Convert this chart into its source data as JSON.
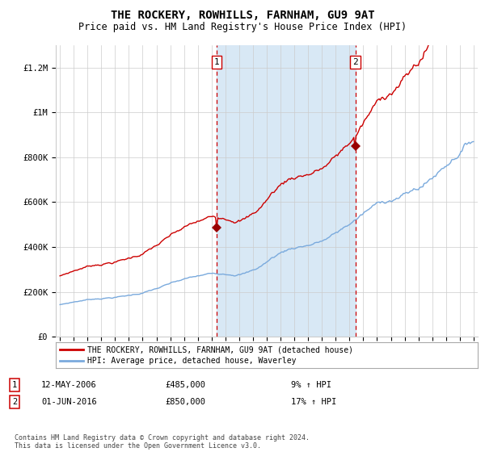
{
  "title": "THE ROCKERY, ROWHILLS, FARNHAM, GU9 9AT",
  "subtitle": "Price paid vs. HM Land Registry's House Price Index (HPI)",
  "title_fontsize": 10,
  "subtitle_fontsize": 8.5,
  "bg_color": "#ffffff",
  "plot_bg_color": "#ffffff",
  "shaded_region_color": "#d8e8f5",
  "grid_color": "#cccccc",
  "red_line_color": "#cc0000",
  "blue_line_color": "#7aaadd",
  "ylim": [
    0,
    1300000
  ],
  "yticks": [
    0,
    200000,
    400000,
    600000,
    800000,
    1000000,
    1200000
  ],
  "ytick_labels": [
    "£0",
    "£200K",
    "£400K",
    "£600K",
    "£800K",
    "£1M",
    "£1.2M"
  ],
  "year_start": 1995,
  "year_end": 2025,
  "purchase1_year": 2006.37,
  "purchase1_price": 485000,
  "purchase2_year": 2016.42,
  "purchase2_price": 850000,
  "legend_line1": "THE ROCKERY, ROWHILLS, FARNHAM, GU9 9AT (detached house)",
  "legend_line2": "HPI: Average price, detached house, Waverley",
  "annotation1_date": "12-MAY-2006",
  "annotation1_price": "£485,000",
  "annotation1_hpi": "9% ↑ HPI",
  "annotation2_date": "01-JUN-2016",
  "annotation2_price": "£850,000",
  "annotation2_hpi": "17% ↑ HPI",
  "footer": "Contains HM Land Registry data © Crown copyright and database right 2024.\nThis data is licensed under the Open Government Licence v3.0."
}
